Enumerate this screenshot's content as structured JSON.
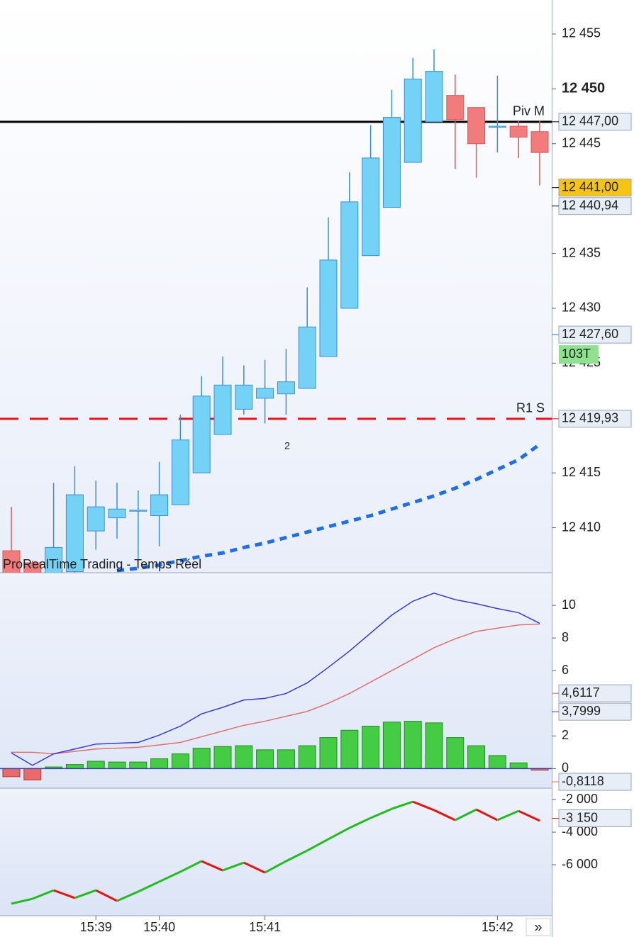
{
  "chart_data": [
    {
      "type": "candlestick",
      "open": [
        12407.9,
        12406.8,
        12405.7,
        12406.0,
        12409.7,
        12410.9,
        12411.6,
        12411.1,
        12412.1,
        12415.0,
        12418.5,
        12420.8,
        12421.8,
        12422.2,
        12422.7,
        12425.6,
        12430.0,
        12434.8,
        12439.2,
        12443.3,
        12447.0,
        12449.4,
        12448.3,
        12446.6,
        12446.6,
        12446.1
      ],
      "high": [
        12411.9,
        12407.0,
        12414.1,
        12415.6,
        12414.3,
        12414.1,
        12413.4,
        12416.0,
        12420.3,
        12423.8,
        12425.6,
        12424.8,
        12425.3,
        12426.3,
        12431.9,
        12438.3,
        12442.4,
        12446.7,
        12449.9,
        12452.8,
        12453.6,
        12451.3,
        12448.3,
        12451.2,
        12447.1,
        12447.1
      ],
      "low": [
        12405.5,
        12405.5,
        12405.5,
        12405.5,
        12408.0,
        12409.0,
        12407.0,
        12408.3,
        12412.1,
        12415.0,
        12418.5,
        12420.3,
        12419.5,
        12420.3,
        12422.7,
        12425.6,
        12430.0,
        12434.8,
        12439.2,
        12443.3,
        12447.0,
        12442.7,
        12441.9,
        12444.2,
        12443.7,
        12441.2
      ],
      "close": [
        12405.7,
        12405.8,
        12408.2,
        12413.0,
        12411.9,
        12411.7,
        12411.6,
        12413.0,
        12418.0,
        12422.0,
        12423.0,
        12423.0,
        12422.7,
        12423.3,
        12428.3,
        12434.4,
        12439.7,
        12443.7,
        12447.4,
        12450.9,
        12451.6,
        12447.2,
        12445.0,
        12446.6,
        12445.6,
        12444.2
      ],
      "up_color": "#74d2f6",
      "down_color": "#f27b7b",
      "moving_average": {
        "color": "#1f6fe6",
        "values": [
          null,
          null,
          null,
          null,
          null,
          12406.1,
          12406.3,
          12406.6,
          12407.0,
          12407.4,
          12407.7,
          12408.2,
          12408.6,
          12409.1,
          12409.6,
          12410.1,
          12410.6,
          12411.1,
          12411.7,
          12412.3,
          12412.9,
          12413.6,
          12414.4,
          12415.3,
          12416.2,
          12417.6
        ]
      },
      "levels": [
        {
          "name": "Piv M",
          "value": 12447.0,
          "label": "12 447,00",
          "color": "#000000",
          "dashed": false
        },
        {
          "name": "R1 S",
          "value": 12419.93,
          "label": "12 419,93",
          "color": "#e8141b",
          "dashed": true
        }
      ],
      "price_labels": [
        {
          "value": 12441.0,
          "label": "12 441,00",
          "color": "#000000",
          "background": "#f7c511"
        },
        {
          "value": 12440.94,
          "label": "12 440,94",
          "color": "#000000",
          "background": "#e8eef8"
        },
        {
          "value": 12427.6,
          "label": "12 427,60",
          "color": "#1f6fe6",
          "background": "#e8eef8"
        }
      ],
      "volume_label": "103T",
      "annotation": "2",
      "watermark": "ProRealTime Trading - Temps Réel",
      "ylim": [
        12405.9,
        12458.1
      ],
      "yticks": [
        {
          "value": 12455,
          "label": "12 455"
        },
        {
          "value": 12450,
          "label": "12 450",
          "bold": true
        },
        {
          "value": 12445,
          "label": "12 445"
        },
        {
          "value": 12435,
          "label": "12 435"
        },
        {
          "value": 12430,
          "label": "12 430"
        },
        {
          "value": 12425,
          "label": "12 425"
        },
        {
          "value": 12415,
          "label": "12 415"
        },
        {
          "value": 12410,
          "label": "12 410"
        }
      ]
    },
    {
      "type": "macd",
      "macd": {
        "color": "#3a3ad0",
        "values": [
          0.96,
          0.2,
          0.9,
          1.2,
          1.5,
          1.55,
          1.6,
          2.05,
          2.6,
          3.35,
          3.75,
          4.2,
          4.3,
          4.6,
          5.25,
          6.2,
          7.2,
          8.3,
          9.4,
          10.25,
          10.75,
          10.35,
          10.1,
          9.8,
          9.55,
          8.9
        ]
      },
      "signal": {
        "color": "#e07070",
        "values": [
          1.0,
          1.0,
          0.9,
          1.05,
          1.2,
          1.25,
          1.3,
          1.45,
          1.6,
          1.95,
          2.3,
          2.65,
          2.9,
          3.2,
          3.5,
          4.0,
          4.6,
          5.3,
          6.0,
          6.7,
          7.4,
          7.95,
          8.4,
          8.6,
          8.8,
          8.85
        ]
      },
      "histogram": {
        "up_color": "#45cc45",
        "down_color": "#e86a6a",
        "values": [
          -0.5,
          -0.7,
          0.1,
          0.25,
          0.45,
          0.4,
          0.4,
          0.6,
          0.9,
          1.25,
          1.35,
          1.4,
          1.15,
          1.15,
          1.4,
          1.9,
          2.35,
          2.6,
          2.85,
          2.9,
          2.8,
          1.9,
          1.4,
          0.8,
          0.35,
          -0.1
        ]
      },
      "value_labels": [
        {
          "value": 4.6117,
          "label": "4,6117",
          "color": "#e06060"
        },
        {
          "value": 3.7999,
          "label": "3,7999",
          "color": "#3a3ad0"
        },
        {
          "value": -0.8118,
          "label": "-0,8118",
          "color": "#e06060"
        }
      ],
      "ylim": [
        -1.2,
        12
      ],
      "yticks": [
        0,
        2,
        6,
        8,
        10
      ]
    },
    {
      "type": "line",
      "values": [
        -8390,
        -8090,
        -7570,
        -8040,
        -7570,
        -8220,
        -7650,
        -7040,
        -6430,
        -5780,
        -6350,
        -5870,
        -6480,
        -5780,
        -5130,
        -4430,
        -3740,
        -3130,
        -2570,
        -2130,
        -2650,
        -3260,
        -2610,
        -3260,
        -2700,
        -3300
      ],
      "up_color": "#22bb22",
      "down_color": "#ee1111",
      "value_labels": [
        {
          "value": -3150,
          "label": "-3 150",
          "color": "#ee1111"
        }
      ],
      "categories": [
        null,
        null,
        null,
        null,
        "15:39",
        null,
        null,
        "15:40",
        null,
        null,
        null,
        null,
        "15:41",
        null,
        null,
        null,
        null,
        null,
        null,
        null,
        null,
        null,
        null,
        "15:42",
        null,
        null
      ],
      "ylim": [
        -9130,
        -1300
      ],
      "yticks": [
        {
          "value": -2000,
          "label": "-2 000"
        },
        {
          "value": -4000,
          "label": "-4 000"
        },
        {
          "value": -6000,
          "label": "-6 000"
        }
      ]
    }
  ],
  "scroll_button": "»"
}
